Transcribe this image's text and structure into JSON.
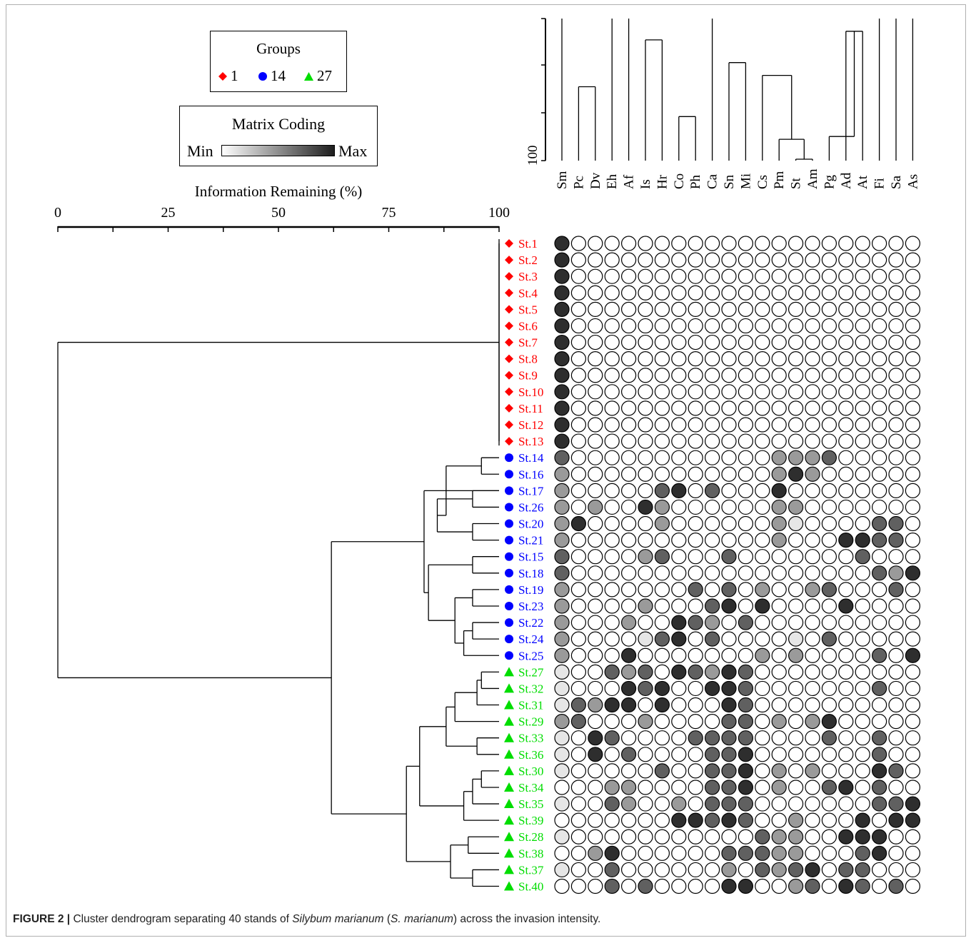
{
  "legend": {
    "groups_title": "Groups",
    "groups": [
      {
        "label": "1",
        "color": "#ff0000",
        "shape": "diamond"
      },
      {
        "label": "14",
        "color": "#0000ff",
        "shape": "circle"
      },
      {
        "label": "27",
        "color": "#00dd00",
        "shape": "triangle"
      }
    ],
    "coding_title": "Matrix Coding",
    "coding_min": "Min",
    "coding_max": "Max"
  },
  "caption": {
    "label": "FIGURE 2 |",
    "text_a": " Cluster dendrogram separating 40 stands of ",
    "species": "Silybum marianum",
    "text_b": " (",
    "species_short": "S. marianum",
    "text_c": ") across the invasion intensity."
  },
  "chart_data": {
    "type": "heatmap",
    "axis_title": "Information Remaining (%)",
    "axis_ticks": [
      0,
      25,
      50,
      75,
      100
    ],
    "species_axis_tick": "100",
    "species": [
      "Sm",
      "Pc",
      "Dv",
      "Eh",
      "Af",
      "Is",
      "Hr",
      "Co",
      "Ph",
      "Ca",
      "Sn",
      "Mi",
      "Cs",
      "Pm",
      "St",
      "Am",
      "Pg",
      "Ad",
      "At",
      "Fi",
      "Sa",
      "As"
    ],
    "species_tree": [
      {
        "a": 1,
        "b": 2,
        "h": 0.52
      },
      {
        "a": 5,
        "b": 6,
        "h": 0.85
      },
      {
        "a": 7,
        "b": 8,
        "h": 0.31
      },
      {
        "a": 10,
        "b": 11,
        "h": 0.69
      },
      {
        "a": 14,
        "b": 15,
        "h": 0.01
      },
      {
        "a": 13,
        "b": 14.5,
        "h": 0.15
      },
      {
        "a": 12,
        "b": 13.75,
        "h": 0.6
      },
      {
        "a": 17,
        "b": 18,
        "h": 0.91
      },
      {
        "a": 16,
        "b": 17.5,
        "h": 0.17
      },
      {
        "a": 17,
        "b": 18,
        "h": 0.91
      }
    ],
    "colors": {
      "group1": "#ff0000",
      "group2": "#0000ff",
      "group3": "#00dd00"
    },
    "stands": [
      {
        "name": "St.1",
        "group": 1,
        "values": [
          4,
          0,
          0,
          0,
          0,
          0,
          0,
          0,
          0,
          0,
          0,
          0,
          0,
          0,
          0,
          0,
          0,
          0,
          0,
          0,
          0,
          0
        ]
      },
      {
        "name": "St.2",
        "group": 1,
        "values": [
          4,
          0,
          0,
          0,
          0,
          0,
          0,
          0,
          0,
          0,
          0,
          0,
          0,
          0,
          0,
          0,
          0,
          0,
          0,
          0,
          0,
          0
        ]
      },
      {
        "name": "St.3",
        "group": 1,
        "values": [
          4,
          0,
          0,
          0,
          0,
          0,
          0,
          0,
          0,
          0,
          0,
          0,
          0,
          0,
          0,
          0,
          0,
          0,
          0,
          0,
          0,
          0
        ]
      },
      {
        "name": "St.4",
        "group": 1,
        "values": [
          4,
          0,
          0,
          0,
          0,
          0,
          0,
          0,
          0,
          0,
          0,
          0,
          0,
          0,
          0,
          0,
          0,
          0,
          0,
          0,
          0,
          0
        ]
      },
      {
        "name": "St.5",
        "group": 1,
        "values": [
          4,
          0,
          0,
          0,
          0,
          0,
          0,
          0,
          0,
          0,
          0,
          0,
          0,
          0,
          0,
          0,
          0,
          0,
          0,
          0,
          0,
          0
        ]
      },
      {
        "name": "St.6",
        "group": 1,
        "values": [
          4,
          0,
          0,
          0,
          0,
          0,
          0,
          0,
          0,
          0,
          0,
          0,
          0,
          0,
          0,
          0,
          0,
          0,
          0,
          0,
          0,
          0
        ]
      },
      {
        "name": "St.7",
        "group": 1,
        "values": [
          4,
          0,
          0,
          0,
          0,
          0,
          0,
          0,
          0,
          0,
          0,
          0,
          0,
          0,
          0,
          0,
          0,
          0,
          0,
          0,
          0,
          0
        ]
      },
      {
        "name": "St.8",
        "group": 1,
        "values": [
          4,
          0,
          0,
          0,
          0,
          0,
          0,
          0,
          0,
          0,
          0,
          0,
          0,
          0,
          0,
          0,
          0,
          0,
          0,
          0,
          0,
          0
        ]
      },
      {
        "name": "St.9",
        "group": 1,
        "values": [
          4,
          0,
          0,
          0,
          0,
          0,
          0,
          0,
          0,
          0,
          0,
          0,
          0,
          0,
          0,
          0,
          0,
          0,
          0,
          0,
          0,
          0
        ]
      },
      {
        "name": "St.10",
        "group": 1,
        "values": [
          4,
          0,
          0,
          0,
          0,
          0,
          0,
          0,
          0,
          0,
          0,
          0,
          0,
          0,
          0,
          0,
          0,
          0,
          0,
          0,
          0,
          0
        ]
      },
      {
        "name": "St.11",
        "group": 1,
        "values": [
          4,
          0,
          0,
          0,
          0,
          0,
          0,
          0,
          0,
          0,
          0,
          0,
          0,
          0,
          0,
          0,
          0,
          0,
          0,
          0,
          0,
          0
        ]
      },
      {
        "name": "St.12",
        "group": 1,
        "values": [
          4,
          0,
          0,
          0,
          0,
          0,
          0,
          0,
          0,
          0,
          0,
          0,
          0,
          0,
          0,
          0,
          0,
          0,
          0,
          0,
          0,
          0
        ]
      },
      {
        "name": "St.13",
        "group": 1,
        "values": [
          4,
          0,
          0,
          0,
          0,
          0,
          0,
          0,
          0,
          0,
          0,
          0,
          0,
          0,
          0,
          0,
          0,
          0,
          0,
          0,
          0,
          0
        ]
      },
      {
        "name": "St.14",
        "group": 2,
        "values": [
          3,
          0,
          0,
          0,
          0,
          0,
          0,
          0,
          0,
          0,
          0,
          0,
          0,
          2,
          2,
          2,
          3,
          0,
          0,
          0,
          0,
          0
        ]
      },
      {
        "name": "St.16",
        "group": 2,
        "values": [
          2,
          0,
          0,
          0,
          0,
          0,
          0,
          0,
          0,
          0,
          0,
          0,
          0,
          2,
          4,
          2,
          0,
          0,
          0,
          0,
          0,
          0
        ]
      },
      {
        "name": "St.17",
        "group": 2,
        "values": [
          2,
          0,
          0,
          0,
          0,
          0,
          3,
          4,
          0,
          3,
          0,
          0,
          0,
          4,
          0,
          0,
          0,
          0,
          0,
          0,
          0,
          0
        ]
      },
      {
        "name": "St.26",
        "group": 2,
        "values": [
          2,
          0,
          2,
          0,
          0,
          4,
          2,
          0,
          0,
          0,
          0,
          0,
          0,
          2,
          2,
          0,
          0,
          0,
          0,
          0,
          0,
          0
        ]
      },
      {
        "name": "St.20",
        "group": 2,
        "values": [
          2,
          4,
          0,
          0,
          0,
          0,
          2,
          0,
          0,
          0,
          0,
          0,
          0,
          2,
          1,
          0,
          0,
          0,
          0,
          3,
          3,
          0
        ]
      },
      {
        "name": "St.21",
        "group": 2,
        "values": [
          2,
          0,
          0,
          0,
          0,
          0,
          0,
          0,
          0,
          0,
          0,
          0,
          0,
          2,
          0,
          0,
          0,
          4,
          4,
          3,
          3,
          0
        ]
      },
      {
        "name": "St.15",
        "group": 2,
        "values": [
          3,
          0,
          0,
          0,
          0,
          2,
          3,
          0,
          0,
          0,
          3,
          0,
          0,
          0,
          0,
          0,
          0,
          0,
          3,
          0,
          0,
          0
        ]
      },
      {
        "name": "St.18",
        "group": 2,
        "values": [
          3,
          0,
          0,
          0,
          0,
          0,
          0,
          0,
          0,
          0,
          0,
          0,
          0,
          0,
          0,
          0,
          0,
          0,
          0,
          3,
          2,
          4
        ]
      },
      {
        "name": "St.19",
        "group": 2,
        "values": [
          2,
          0,
          0,
          0,
          0,
          0,
          0,
          0,
          3,
          0,
          3,
          0,
          2,
          0,
          0,
          2,
          3,
          0,
          0,
          0,
          3,
          0
        ]
      },
      {
        "name": "St.23",
        "group": 2,
        "values": [
          2,
          0,
          0,
          0,
          0,
          2,
          0,
          0,
          0,
          3,
          4,
          0,
          4,
          0,
          0,
          0,
          0,
          4,
          0,
          0,
          0,
          0
        ]
      },
      {
        "name": "St.22",
        "group": 2,
        "values": [
          2,
          0,
          0,
          0,
          2,
          0,
          0,
          4,
          3,
          2,
          0,
          3,
          0,
          0,
          0,
          0,
          0,
          0,
          0,
          0,
          0,
          0
        ]
      },
      {
        "name": "St.24",
        "group": 2,
        "values": [
          2,
          0,
          0,
          0,
          0,
          1,
          3,
          4,
          0,
          3,
          0,
          0,
          0,
          0,
          1,
          0,
          3,
          0,
          0,
          0,
          0,
          0
        ]
      },
      {
        "name": "St.25",
        "group": 2,
        "values": [
          2,
          0,
          0,
          0,
          4,
          0,
          0,
          0,
          0,
          0,
          0,
          0,
          2,
          0,
          2,
          0,
          0,
          0,
          0,
          3,
          0,
          4
        ]
      },
      {
        "name": "St.27",
        "group": 3,
        "values": [
          1,
          0,
          0,
          3,
          2,
          3,
          0,
          4,
          3,
          2,
          4,
          3,
          0,
          0,
          0,
          0,
          0,
          0,
          0,
          0,
          0,
          0
        ]
      },
      {
        "name": "St.32",
        "group": 3,
        "values": [
          1,
          0,
          0,
          0,
          4,
          3,
          4,
          0,
          0,
          4,
          4,
          3,
          0,
          0,
          0,
          0,
          0,
          0,
          0,
          3,
          0,
          0
        ]
      },
      {
        "name": "St.31",
        "group": 3,
        "values": [
          1,
          3,
          2,
          4,
          4,
          0,
          4,
          0,
          0,
          0,
          4,
          3,
          0,
          0,
          0,
          0,
          0,
          0,
          0,
          0,
          0,
          0
        ]
      },
      {
        "name": "St.29",
        "group": 3,
        "values": [
          2,
          3,
          0,
          0,
          0,
          2,
          0,
          0,
          0,
          0,
          3,
          3,
          0,
          2,
          0,
          2,
          4,
          0,
          0,
          0,
          0,
          0
        ]
      },
      {
        "name": "St.33",
        "group": 3,
        "values": [
          1,
          0,
          4,
          3,
          0,
          0,
          0,
          0,
          3,
          3,
          3,
          3,
          0,
          0,
          0,
          0,
          3,
          0,
          0,
          3,
          0,
          0
        ]
      },
      {
        "name": "St.36",
        "group": 3,
        "values": [
          1,
          0,
          4,
          0,
          3,
          0,
          0,
          0,
          0,
          3,
          3,
          4,
          0,
          0,
          0,
          0,
          0,
          0,
          0,
          3,
          0,
          0
        ]
      },
      {
        "name": "St.30",
        "group": 3,
        "values": [
          1,
          0,
          0,
          0,
          0,
          0,
          3,
          0,
          0,
          3,
          3,
          4,
          0,
          2,
          0,
          2,
          0,
          0,
          0,
          4,
          3,
          0
        ]
      },
      {
        "name": "St.34",
        "group": 3,
        "values": [
          0,
          0,
          0,
          2,
          2,
          0,
          0,
          0,
          0,
          3,
          3,
          4,
          0,
          2,
          0,
          0,
          3,
          4,
          0,
          3,
          0,
          0
        ]
      },
      {
        "name": "St.35",
        "group": 3,
        "values": [
          1,
          0,
          0,
          3,
          2,
          0,
          0,
          2,
          0,
          3,
          3,
          3,
          0,
          0,
          0,
          0,
          0,
          0,
          0,
          3,
          3,
          4
        ]
      },
      {
        "name": "St.39",
        "group": 3,
        "values": [
          0,
          0,
          0,
          0,
          0,
          0,
          0,
          4,
          4,
          3,
          4,
          3,
          0,
          0,
          2,
          0,
          0,
          0,
          4,
          0,
          4,
          4
        ]
      },
      {
        "name": "St.28",
        "group": 3,
        "values": [
          1,
          0,
          0,
          0,
          0,
          0,
          0,
          0,
          0,
          0,
          0,
          0,
          3,
          2,
          2,
          0,
          0,
          4,
          4,
          4,
          0,
          0
        ]
      },
      {
        "name": "St.38",
        "group": 3,
        "values": [
          0,
          0,
          2,
          4,
          0,
          0,
          0,
          0,
          0,
          0,
          3,
          3,
          3,
          2,
          2,
          0,
          0,
          0,
          3,
          4,
          0,
          0
        ]
      },
      {
        "name": "St.37",
        "group": 3,
        "values": [
          1,
          0,
          0,
          3,
          0,
          0,
          0,
          0,
          0,
          0,
          2,
          0,
          3,
          2,
          3,
          4,
          0,
          3,
          3,
          0,
          0,
          0
        ]
      },
      {
        "name": "St.40",
        "group": 3,
        "values": [
          0,
          0,
          0,
          3,
          0,
          3,
          0,
          0,
          0,
          0,
          4,
          4,
          0,
          0,
          2,
          3,
          0,
          4,
          3,
          0,
          3,
          0
        ]
      }
    ],
    "stand_tree": [
      {
        "a": 13,
        "b": 14,
        "x": 96
      },
      {
        "a": 15,
        "b": 16,
        "x": 94
      },
      {
        "a": 17,
        "b": 18,
        "x": 94
      },
      {
        "a": 15.5,
        "b": 17.5,
        "x": 86
      },
      {
        "a": 13.5,
        "b": 16.5,
        "x": 88
      },
      {
        "a": 19,
        "b": 20,
        "x": 94
      },
      {
        "a": 21,
        "b": 22,
        "x": 94
      },
      {
        "a": 23,
        "b": 24,
        "x": 94
      },
      {
        "a": 23.5,
        "b": 25,
        "x": 92
      },
      {
        "a": 21.5,
        "b": 24.25,
        "x": 90
      },
      {
        "a": 19.5,
        "b": 22.875,
        "x": 84
      },
      {
        "a": 15,
        "b": 21.1875,
        "x": 83
      },
      {
        "a": 0,
        "b": 12,
        "x": 100
      },
      {
        "a": 26,
        "b": 27,
        "x": 96
      },
      {
        "a": 26.5,
        "b": 28,
        "x": 95
      },
      {
        "a": 27.25,
        "b": 29,
        "x": 90
      },
      {
        "a": 30,
        "b": 31,
        "x": 95
      },
      {
        "a": 28.125,
        "b": 30.5,
        "x": 88
      },
      {
        "a": 32,
        "b": 33,
        "x": 96
      },
      {
        "a": 32.5,
        "b": 34,
        "x": 94
      },
      {
        "a": 33.25,
        "b": 35,
        "x": 92
      },
      {
        "a": 29.3125,
        "b": 34.125,
        "x": 82
      },
      {
        "a": 36,
        "b": 37,
        "x": 93
      },
      {
        "a": 38,
        "b": 39,
        "x": 94
      },
      {
        "a": 36.5,
        "b": 38.5,
        "x": 89
      },
      {
        "a": 31.71875,
        "b": 37.5,
        "x": 79
      },
      {
        "a": 18.09375,
        "b": 34.609375,
        "x": 62
      },
      {
        "a": 6,
        "b": 26.3515625,
        "x": 0
      }
    ]
  }
}
